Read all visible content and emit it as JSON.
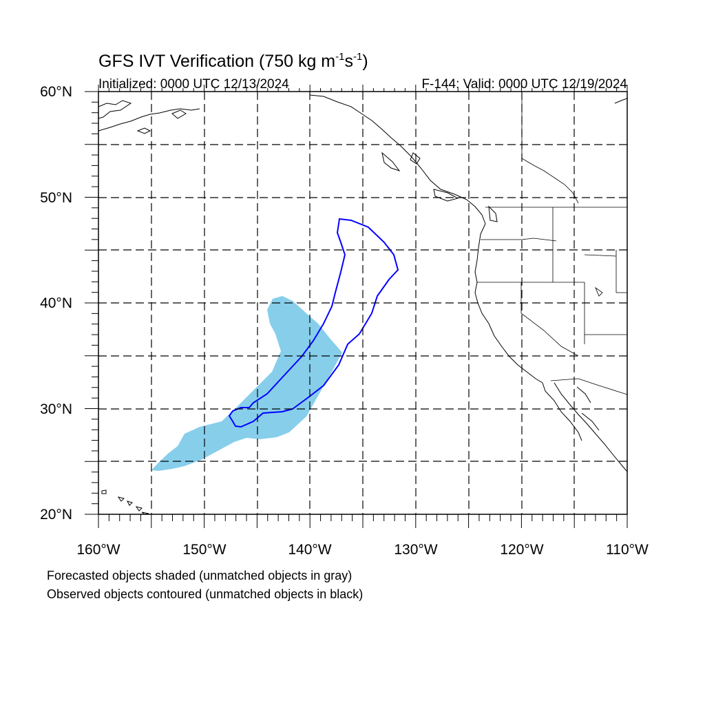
{
  "header": {
    "title": "GFS IVT Verification (750 kg m",
    "title_sup1": "-1",
    "title_mid": "s",
    "title_sup2": "-1",
    "title_end": ")",
    "initialized": "Initialized: 0000 UTC 12/13/2024",
    "valid": "F-144: Valid: 0000 UTC 12/19/2024"
  },
  "axes": {
    "lat_labels": [
      "60°N",
      "50°N",
      "40°N",
      "30°N",
      "20°N"
    ],
    "lon_labels": [
      "160°W",
      "150°W",
      "140°W",
      "130°W",
      "120°W",
      "110°W"
    ],
    "lat_range": [
      20,
      60
    ],
    "lon_range": [
      -160,
      -110
    ],
    "grid": "dashed every 5 degrees"
  },
  "objects": {
    "forecast_fill_color": "#87ceeb",
    "observed_line_color": "#0000ff",
    "coastline_color": "#000000"
  },
  "footer": {
    "line1": "Forecasted objects shaded (unmatched objects in gray)",
    "line2": "Observed objects contoured (unmatched objects in black)"
  }
}
